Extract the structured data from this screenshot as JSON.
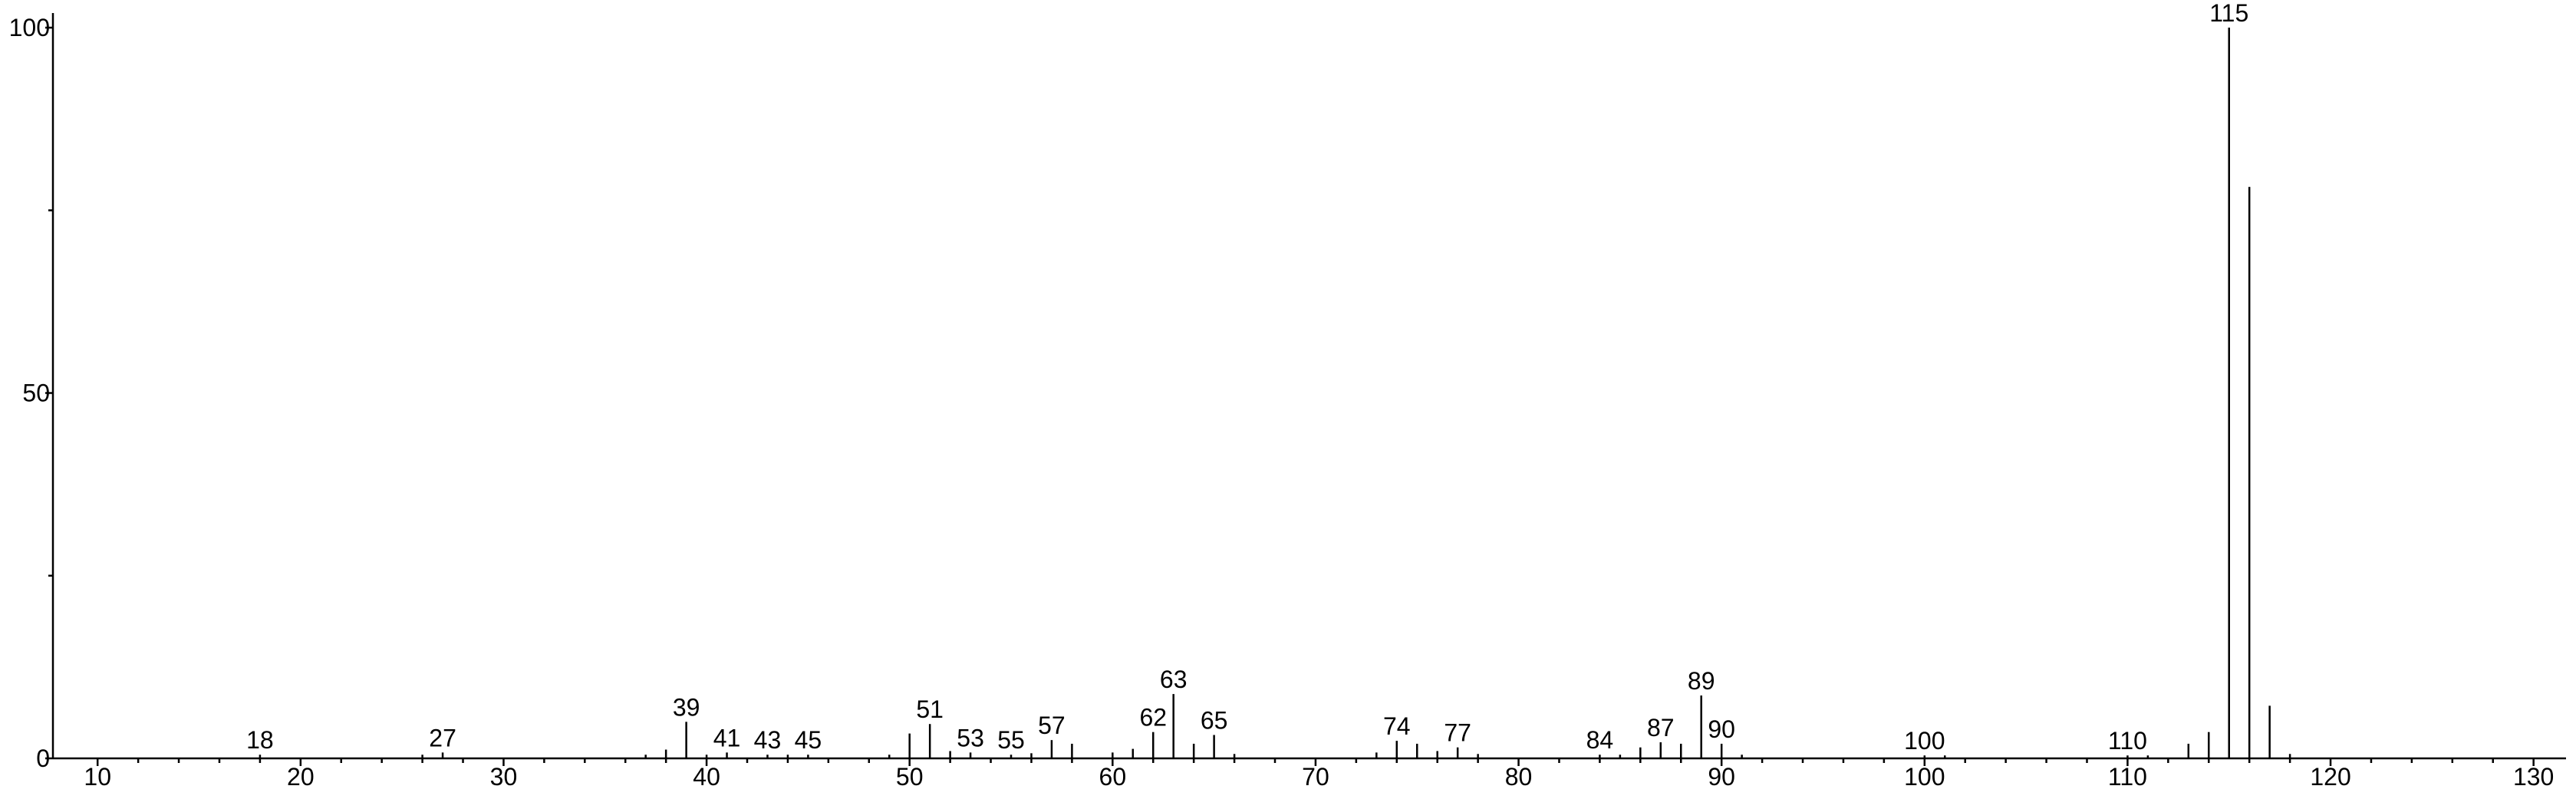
{
  "chart_data": {
    "type": "stick",
    "x": [
      18,
      26,
      27,
      37,
      38,
      39,
      40,
      41,
      43,
      44,
      45,
      49,
      50,
      51,
      52,
      53,
      55,
      56,
      57,
      58,
      60,
      61,
      62,
      63,
      64,
      65,
      66,
      73,
      74,
      75,
      76,
      77,
      78,
      84,
      85,
      86,
      87,
      88,
      89,
      90,
      91,
      100,
      101,
      110,
      111,
      113,
      114,
      115,
      116,
      117,
      118
    ],
    "values": [
      0.5,
      0.5,
      0.8,
      0.5,
      1.2,
      5.0,
      0.5,
      0.8,
      0.5,
      0.5,
      0.5,
      0.5,
      3.4,
      4.7,
      1.0,
      0.8,
      0.5,
      0.7,
      2.5,
      2.0,
      0.8,
      1.3,
      3.6,
      8.8,
      2.0,
      3.2,
      0.6,
      0.8,
      2.4,
      2.0,
      1.0,
      1.5,
      0.6,
      0.5,
      0.5,
      1.5,
      2.2,
      2.0,
      8.6,
      2.0,
      0.5,
      0.4,
      0.4,
      0.4,
      0.4,
      2.0,
      3.6,
      100,
      78.2,
      7.2,
      0.6
    ],
    "point_labels": [
      18,
      null,
      27,
      null,
      null,
      39,
      null,
      41,
      43,
      null,
      45,
      null,
      null,
      51,
      null,
      53,
      55,
      null,
      57,
      null,
      null,
      null,
      62,
      63,
      null,
      65,
      null,
      null,
      74,
      null,
      null,
      77,
      null,
      84,
      null,
      null,
      87,
      null,
      89,
      90,
      null,
      100,
      null,
      110,
      null,
      null,
      null,
      115,
      null,
      null,
      null
    ],
    "color": "#000000",
    "xlim": [
      7.8,
      131.6
    ],
    "ylim": [
      0,
      102
    ],
    "xticks": [
      10,
      20,
      30,
      40,
      50,
      60,
      70,
      80,
      90,
      100,
      110,
      120,
      130
    ],
    "xminorticks": [
      12,
      14,
      16,
      18,
      22,
      24,
      26,
      28,
      32,
      34,
      36,
      38,
      42,
      44,
      46,
      48,
      52,
      54,
      56,
      58,
      62,
      64,
      66,
      68,
      72,
      74,
      76,
      78,
      82,
      84,
      86,
      88,
      92,
      94,
      96,
      98,
      102,
      104,
      106,
      108,
      112,
      114,
      116,
      118,
      122,
      124,
      126,
      128
    ],
    "yticks": [
      0,
      50,
      100
    ],
    "yminorticks": [
      25,
      75
    ]
  }
}
